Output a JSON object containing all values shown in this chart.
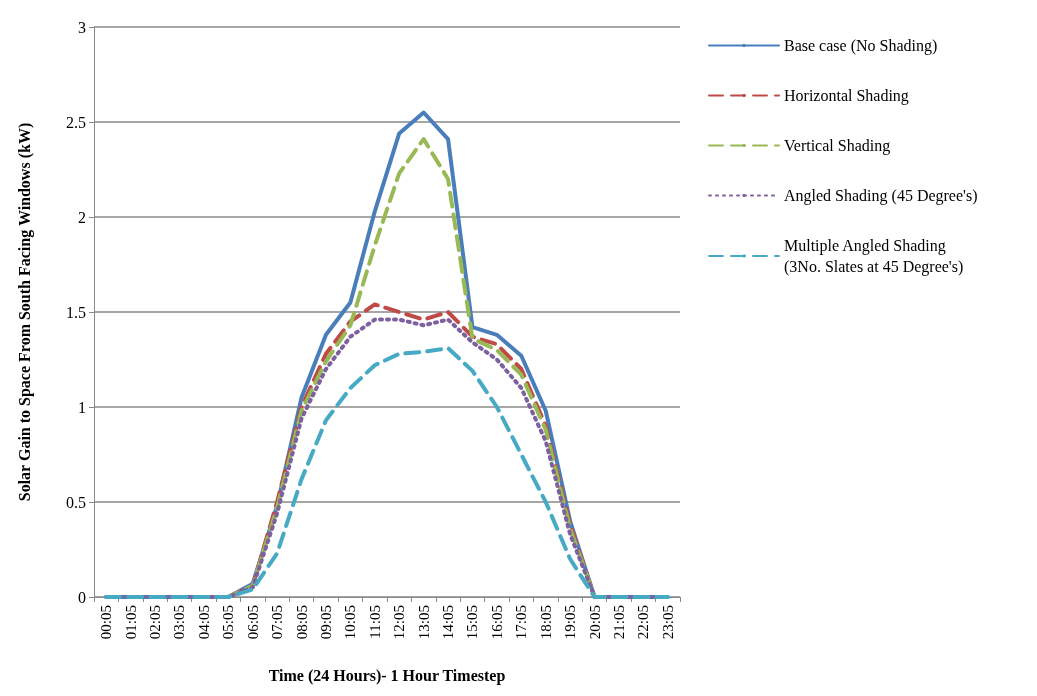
{
  "chart_data": {
    "type": "line",
    "xlabel": "Time (24 Hours)- 1 Hour Timestep",
    "ylabel": "Solar Gain to Space From South Facing Windows (kW)",
    "categories": [
      "00:05",
      "01:05",
      "02:05",
      "03:05",
      "04:05",
      "05:05",
      "06:05",
      "07:05",
      "08:05",
      "09:05",
      "10:05",
      "11:05",
      "12:05",
      "13:05",
      "14:05",
      "15:05",
      "16:05",
      "17:05",
      "18:05",
      "19:05",
      "20:05",
      "21:05",
      "22:05",
      "23:05"
    ],
    "series": [
      {
        "name": "Base case (No Shading)",
        "color": "#4a7ebb",
        "line_style": "solid",
        "values": [
          0,
          0,
          0,
          0,
          0,
          0,
          0.07,
          0.48,
          1.05,
          1.38,
          1.55,
          2.03,
          2.44,
          2.55,
          2.41,
          1.42,
          1.38,
          1.27,
          0.98,
          0.4,
          0,
          0,
          0,
          0
        ]
      },
      {
        "name": "Horizontal Shading",
        "color": "#be4b48",
        "line_style": "dashed",
        "values": [
          null,
          null,
          null,
          null,
          null,
          0,
          0.06,
          0.5,
          1.0,
          1.28,
          1.45,
          1.54,
          1.5,
          1.46,
          1.5,
          1.37,
          1.33,
          1.2,
          0.9,
          0.38,
          0,
          0,
          null,
          null
        ]
      },
      {
        "name": "Vertical Shading",
        "color": "#98b954",
        "line_style": "dashed",
        "values": [
          null,
          null,
          null,
          null,
          0,
          0,
          0.06,
          0.47,
          0.98,
          1.24,
          1.43,
          1.85,
          2.23,
          2.41,
          2.2,
          1.36,
          1.3,
          1.17,
          0.88,
          0.36,
          0,
          0,
          null,
          null
        ]
      },
      {
        "name": "Angled Shading (45 Degree's)",
        "color": "#7d60a0",
        "line_style": "dotted",
        "values": [
          0,
          0,
          0,
          0,
          0,
          0,
          0.05,
          0.44,
          0.94,
          1.2,
          1.37,
          1.46,
          1.46,
          1.43,
          1.46,
          1.34,
          1.25,
          1.1,
          0.82,
          0.33,
          0,
          0,
          0,
          0
        ]
      },
      {
        "name": "Multiple Angled Shading (3No. Slates at 45 Degree's)",
        "color": "#46aac5",
        "line_style": "dashed",
        "values": [
          0,
          0,
          0,
          0,
          0,
          0,
          0.04,
          0.23,
          0.62,
          0.93,
          1.1,
          1.22,
          1.28,
          1.29,
          1.31,
          1.19,
          1.0,
          0.75,
          0.5,
          0.2,
          0,
          0,
          0,
          0
        ]
      }
    ],
    "ylim": [
      0,
      3
    ],
    "yticks": [
      0,
      0.5,
      1,
      1.5,
      2,
      2.5,
      3
    ],
    "grid": "y",
    "legend": "right",
    "marker": "none"
  }
}
